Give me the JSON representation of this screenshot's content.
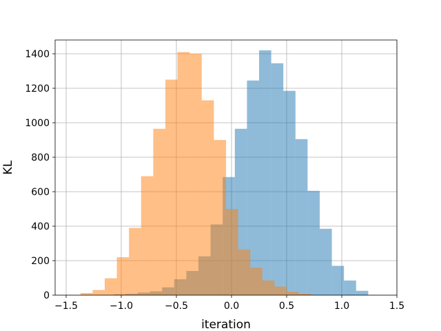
{
  "chart_data": {
    "type": "bar",
    "subtype": "overlaid-histogram",
    "title": "",
    "xlabel": "iteration",
    "ylabel": "KL",
    "xlim": [
      -1.6,
      1.5
    ],
    "ylim": [
      0,
      1480
    ],
    "grid": true,
    "x_ticks": [
      -1.5,
      -1.0,
      -0.5,
      0.0,
      0.5,
      1.0,
      1.5
    ],
    "x_tick_labels": [
      "−1.5",
      "−1.0",
      "−0.5",
      "0.0",
      "0.5",
      "1.0",
      "1.5"
    ],
    "y_ticks": [
      0,
      200,
      400,
      600,
      800,
      1000,
      1200,
      1400
    ],
    "y_tick_labels": [
      "0",
      "200",
      "400",
      "600",
      "800",
      "1000",
      "1200",
      "1400"
    ],
    "series": [
      {
        "color": "#1f77b4",
        "opacity": 0.5,
        "bin_edges": [
          -1.07,
          -0.96,
          -0.85,
          -0.74,
          -0.63,
          -0.52,
          -0.41,
          -0.3,
          -0.19,
          -0.08,
          0.03,
          0.14,
          0.25,
          0.36,
          0.47,
          0.58,
          0.69,
          0.8,
          0.91,
          1.02,
          1.13,
          1.24
        ],
        "counts": [
          5,
          8,
          15,
          22,
          45,
          92,
          140,
          225,
          410,
          685,
          965,
          1245,
          1420,
          1345,
          1185,
          905,
          605,
          385,
          170,
          85,
          25
        ]
      },
      {
        "color": "#ff7f0e",
        "opacity": 0.5,
        "bin_edges": [
          -1.37,
          -1.26,
          -1.15,
          -1.04,
          -0.93,
          -0.82,
          -0.71,
          -0.6,
          -0.49,
          -0.38,
          -0.27,
          -0.16,
          -0.05,
          0.06,
          0.17,
          0.28,
          0.39,
          0.5,
          0.61,
          0.72,
          0.83
        ],
        "counts": [
          12,
          30,
          98,
          220,
          390,
          690,
          965,
          1250,
          1410,
          1400,
          1130,
          900,
          500,
          265,
          160,
          85,
          50,
          20,
          8,
          2
        ]
      }
    ]
  }
}
